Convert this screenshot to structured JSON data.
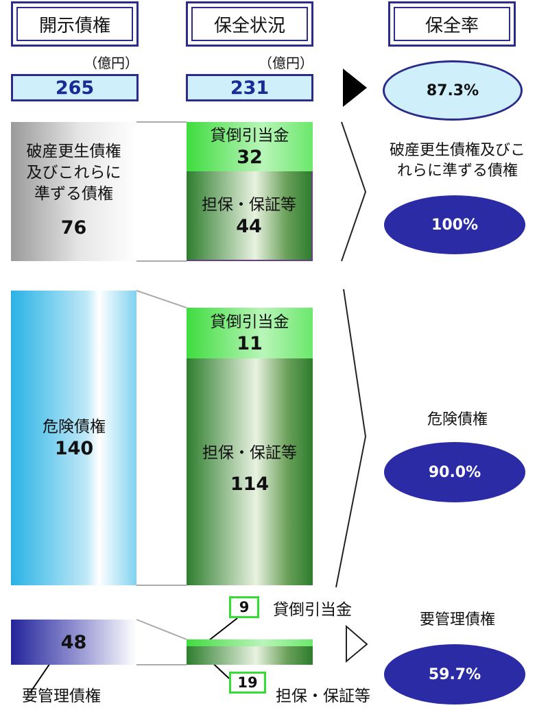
{
  "headers": {
    "disclosed": "開示債権",
    "coverage_status": "保全状況",
    "coverage_ratio": "保全率"
  },
  "unit_label": "（億円）",
  "totals": {
    "disclosed": "265",
    "covered": "231",
    "ratio": "87.3%"
  },
  "categories": [
    {
      "name": "破産更生債権及びこれらに準ずる債権",
      "left_label": "破産更生債権\n及びこれらに\n準ずる債権",
      "amount": "76",
      "allowance_label": "貸倒引当金",
      "allowance": "32",
      "collateral_label": "担保・保証等",
      "collateral": "44",
      "right_label": "破産更生債権及びこ\nれらに準ずる債権",
      "ratio": "100%"
    },
    {
      "name": "危険債権",
      "left_label": "危険債権",
      "amount": "140",
      "allowance_label": "貸倒引当金",
      "allowance": "11",
      "collateral_label": "担保・保証等",
      "collateral": "114",
      "right_label": "危険債権",
      "ratio": "90.0%"
    },
    {
      "name": "要管理債権",
      "left_label": "要管理債権",
      "amount": "48",
      "allowance_label": "貸倒引当金",
      "allowance": "9",
      "collateral_label": "担保・保証等",
      "collateral": "19",
      "right_label": "要管理債権",
      "ratio": "59.7%"
    }
  ],
  "colors": {
    "navy": "#2b2b8c",
    "ellipse_fill": "#2b2ba6",
    "light_blue": "#cfeffa",
    "green_light": "#3fdc3f",
    "green_dark": "#2e7d2e"
  }
}
